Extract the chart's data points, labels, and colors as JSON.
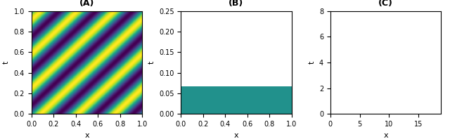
{
  "A": {
    "title": "(A)",
    "xlabel": "x",
    "ylabel": "t",
    "xlim": [
      0,
      1
    ],
    "ylim": [
      0,
      1
    ],
    "nx": 500,
    "nt": 500,
    "wave_speed": 1.0,
    "frequency": 3.0
  },
  "B": {
    "title": "(B)",
    "xlabel": "x",
    "ylabel": "t",
    "xlim": [
      0,
      1
    ],
    "ylim": [
      0,
      0.25
    ],
    "nx": 512,
    "nt": 500,
    "n_periods": 3.0
  },
  "C": {
    "title": "(C)",
    "xlabel": "x",
    "ylabel": "t",
    "xlim": [
      0,
      18.85
    ],
    "ylim": [
      0,
      8
    ],
    "nx": 500,
    "nt": 500
  },
  "cmap": "viridis",
  "figsize": [
    6.4,
    1.98
  ],
  "dpi": 100
}
